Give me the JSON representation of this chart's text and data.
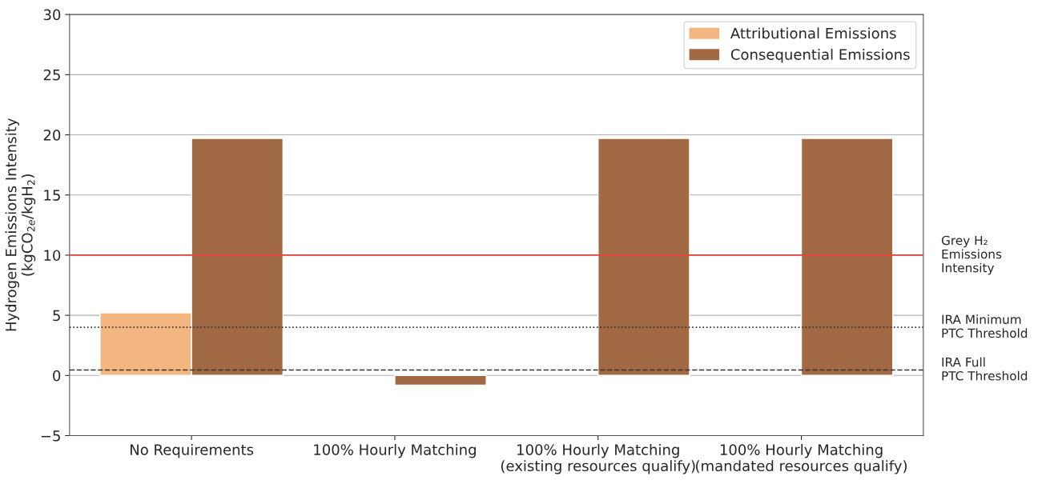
{
  "chart_data": {
    "type": "bar",
    "ylabel": "Hydrogen Emissions Intensity\n(kgCO$_{2e}$/kgH$_{2}$)",
    "categories": [
      "No Requirements",
      "100% Hourly Matching",
      "100% Hourly Matching\n(existing resources qualify)",
      "100% Hourly Matching\n(mandated resources qualify)"
    ],
    "series": [
      {
        "name": "Attributional Emissions",
        "color": "#f4b680",
        "values": [
          5.2,
          null,
          null,
          null
        ]
      },
      {
        "name": "Consequential Emissions",
        "color": "#a26a44",
        "values": [
          19.7,
          -0.8,
          19.7,
          19.7
        ]
      }
    ],
    "ylim": [
      -5,
      30
    ],
    "yticks": [
      -5,
      0,
      5,
      10,
      15,
      20,
      25,
      30
    ],
    "grid": "y",
    "legend": "top right",
    "ref_lines": [
      {
        "axis": "y",
        "value": 10,
        "label": "Grey H₂\nEmissions\nIntensity",
        "color": "#e8403a",
        "line_style": "solid"
      },
      {
        "axis": "y",
        "value": 4,
        "label": "IRA Minimum\nPTC Threshold",
        "color": "#333333",
        "line_style": "dotted"
      },
      {
        "axis": "y",
        "value": 0.45,
        "label": "IRA Full\nPTC Threshold",
        "color": "#333333",
        "line_style": "dashed"
      }
    ]
  }
}
